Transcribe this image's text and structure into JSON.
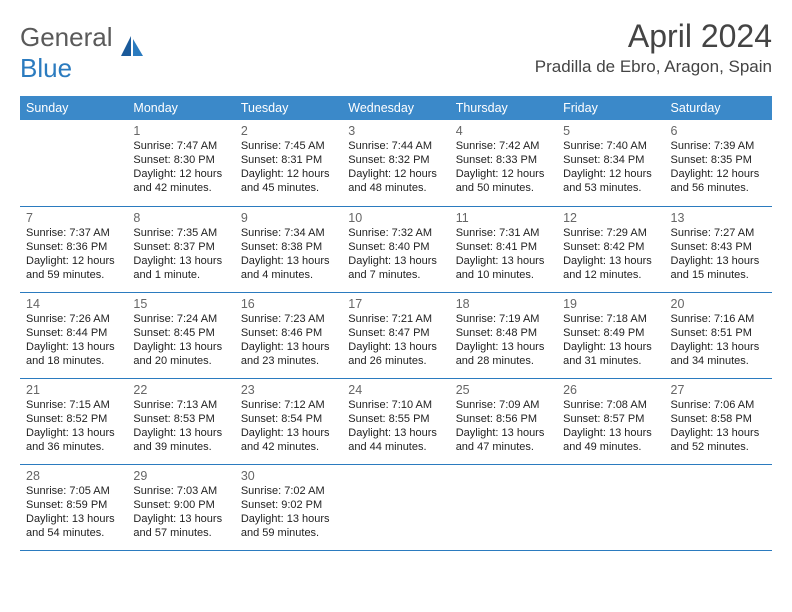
{
  "brand": {
    "name1": "General",
    "name2": "Blue"
  },
  "colors": {
    "header_bg": "#3b89c9",
    "border": "#2b7bbf",
    "text": "#222222",
    "muted": "#666666",
    "title": "#444444"
  },
  "title": "April 2024",
  "location": "Pradilla de Ebro, Aragon, Spain",
  "weekdays": [
    "Sunday",
    "Monday",
    "Tuesday",
    "Wednesday",
    "Thursday",
    "Friday",
    "Saturday"
  ],
  "layout": {
    "first_day_column": 1,
    "days_in_month": 30,
    "rows": 5
  },
  "typography": {
    "title_fontsize": 32,
    "location_fontsize": 17,
    "header_fontsize": 12.5,
    "daynum_fontsize": 12.5,
    "body_fontsize": 11
  },
  "days": {
    "1": {
      "sunrise": "7:47 AM",
      "sunset": "8:30 PM",
      "daylight": "12 hours and 42 minutes."
    },
    "2": {
      "sunrise": "7:45 AM",
      "sunset": "8:31 PM",
      "daylight": "12 hours and 45 minutes."
    },
    "3": {
      "sunrise": "7:44 AM",
      "sunset": "8:32 PM",
      "daylight": "12 hours and 48 minutes."
    },
    "4": {
      "sunrise": "7:42 AM",
      "sunset": "8:33 PM",
      "daylight": "12 hours and 50 minutes."
    },
    "5": {
      "sunrise": "7:40 AM",
      "sunset": "8:34 PM",
      "daylight": "12 hours and 53 minutes."
    },
    "6": {
      "sunrise": "7:39 AM",
      "sunset": "8:35 PM",
      "daylight": "12 hours and 56 minutes."
    },
    "7": {
      "sunrise": "7:37 AM",
      "sunset": "8:36 PM",
      "daylight": "12 hours and 59 minutes."
    },
    "8": {
      "sunrise": "7:35 AM",
      "sunset": "8:37 PM",
      "daylight": "13 hours and 1 minute."
    },
    "9": {
      "sunrise": "7:34 AM",
      "sunset": "8:38 PM",
      "daylight": "13 hours and 4 minutes."
    },
    "10": {
      "sunrise": "7:32 AM",
      "sunset": "8:40 PM",
      "daylight": "13 hours and 7 minutes."
    },
    "11": {
      "sunrise": "7:31 AM",
      "sunset": "8:41 PM",
      "daylight": "13 hours and 10 minutes."
    },
    "12": {
      "sunrise": "7:29 AM",
      "sunset": "8:42 PM",
      "daylight": "13 hours and 12 minutes."
    },
    "13": {
      "sunrise": "7:27 AM",
      "sunset": "8:43 PM",
      "daylight": "13 hours and 15 minutes."
    },
    "14": {
      "sunrise": "7:26 AM",
      "sunset": "8:44 PM",
      "daylight": "13 hours and 18 minutes."
    },
    "15": {
      "sunrise": "7:24 AM",
      "sunset": "8:45 PM",
      "daylight": "13 hours and 20 minutes."
    },
    "16": {
      "sunrise": "7:23 AM",
      "sunset": "8:46 PM",
      "daylight": "13 hours and 23 minutes."
    },
    "17": {
      "sunrise": "7:21 AM",
      "sunset": "8:47 PM",
      "daylight": "13 hours and 26 minutes."
    },
    "18": {
      "sunrise": "7:19 AM",
      "sunset": "8:48 PM",
      "daylight": "13 hours and 28 minutes."
    },
    "19": {
      "sunrise": "7:18 AM",
      "sunset": "8:49 PM",
      "daylight": "13 hours and 31 minutes."
    },
    "20": {
      "sunrise": "7:16 AM",
      "sunset": "8:51 PM",
      "daylight": "13 hours and 34 minutes."
    },
    "21": {
      "sunrise": "7:15 AM",
      "sunset": "8:52 PM",
      "daylight": "13 hours and 36 minutes."
    },
    "22": {
      "sunrise": "7:13 AM",
      "sunset": "8:53 PM",
      "daylight": "13 hours and 39 minutes."
    },
    "23": {
      "sunrise": "7:12 AM",
      "sunset": "8:54 PM",
      "daylight": "13 hours and 42 minutes."
    },
    "24": {
      "sunrise": "7:10 AM",
      "sunset": "8:55 PM",
      "daylight": "13 hours and 44 minutes."
    },
    "25": {
      "sunrise": "7:09 AM",
      "sunset": "8:56 PM",
      "daylight": "13 hours and 47 minutes."
    },
    "26": {
      "sunrise": "7:08 AM",
      "sunset": "8:57 PM",
      "daylight": "13 hours and 49 minutes."
    },
    "27": {
      "sunrise": "7:06 AM",
      "sunset": "8:58 PM",
      "daylight": "13 hours and 52 minutes."
    },
    "28": {
      "sunrise": "7:05 AM",
      "sunset": "8:59 PM",
      "daylight": "13 hours and 54 minutes."
    },
    "29": {
      "sunrise": "7:03 AM",
      "sunset": "9:00 PM",
      "daylight": "13 hours and 57 minutes."
    },
    "30": {
      "sunrise": "7:02 AM",
      "sunset": "9:02 PM",
      "daylight": "13 hours and 59 minutes."
    }
  },
  "labels": {
    "sunrise": "Sunrise: ",
    "sunset": "Sunset: ",
    "daylight": "Daylight: "
  }
}
